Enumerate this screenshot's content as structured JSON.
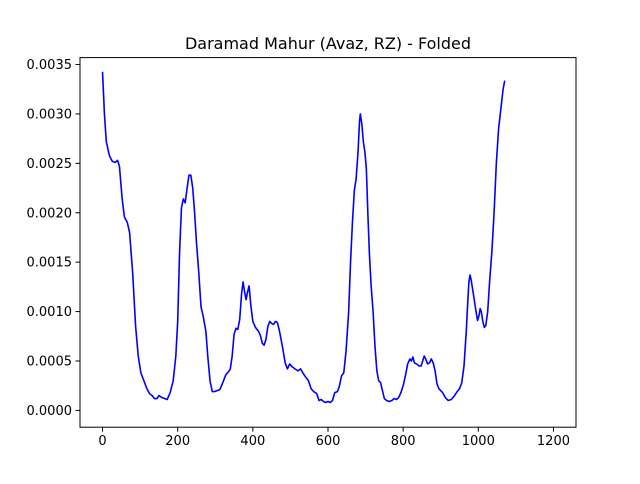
{
  "chart_data": {
    "type": "line",
    "title": "Daramad Mahur (Avaz, RZ) - Folded",
    "xlabel": "",
    "ylabel": "",
    "xlim": [
      -60,
      1260
    ],
    "ylim": [
      -0.00017,
      0.00357
    ],
    "grid": false,
    "legend": "none",
    "x_ticks": [
      {
        "value": 0,
        "label": "0"
      },
      {
        "value": 200,
        "label": "200"
      },
      {
        "value": 400,
        "label": "400"
      },
      {
        "value": 600,
        "label": "600"
      },
      {
        "value": 800,
        "label": "800"
      },
      {
        "value": 1000,
        "label": "1000"
      },
      {
        "value": 1200,
        "label": "1200"
      }
    ],
    "y_ticks": [
      {
        "value": 0.0,
        "label": "0.0000"
      },
      {
        "value": 0.0005,
        "label": "0.0005"
      },
      {
        "value": 0.001,
        "label": "0.0010"
      },
      {
        "value": 0.0015,
        "label": "0.0015"
      },
      {
        "value": 0.002,
        "label": "0.0020"
      },
      {
        "value": 0.0025,
        "label": "0.0025"
      },
      {
        "value": 0.003,
        "label": "0.0030"
      },
      {
        "value": 0.0035,
        "label": "0.0035"
      }
    ],
    "series": [
      {
        "color": "#0000ff",
        "points": [
          [
            0,
            0.00342
          ],
          [
            5,
            0.003
          ],
          [
            10,
            0.00272
          ],
          [
            18,
            0.00258
          ],
          [
            26,
            0.00252
          ],
          [
            34,
            0.00251
          ],
          [
            40,
            0.00253
          ],
          [
            45,
            0.00247
          ],
          [
            52,
            0.00215
          ],
          [
            58,
            0.00196
          ],
          [
            66,
            0.0019
          ],
          [
            72,
            0.0018
          ],
          [
            80,
            0.0014
          ],
          [
            88,
            0.00085
          ],
          [
            95,
            0.00055
          ],
          [
            102,
            0.00038
          ],
          [
            110,
            0.0003
          ],
          [
            118,
            0.00022
          ],
          [
            125,
            0.00017
          ],
          [
            132,
            0.00015
          ],
          [
            138,
            0.00012
          ],
          [
            145,
            0.00012
          ],
          [
            150,
            0.00015
          ],
          [
            158,
            0.00013
          ],
          [
            165,
            0.00012
          ],
          [
            172,
            0.00011
          ],
          [
            180,
            0.00018
          ],
          [
            188,
            0.0003
          ],
          [
            195,
            0.00055
          ],
          [
            200,
            0.0009
          ],
          [
            205,
            0.0016
          ],
          [
            210,
            0.00205
          ],
          [
            215,
            0.00214
          ],
          [
            220,
            0.0021
          ],
          [
            225,
            0.00225
          ],
          [
            230,
            0.00238
          ],
          [
            235,
            0.00238
          ],
          [
            240,
            0.00225
          ],
          [
            245,
            0.002
          ],
          [
            250,
            0.0017
          ],
          [
            256,
            0.0014
          ],
          [
            262,
            0.00105
          ],
          [
            268,
            0.00095
          ],
          [
            275,
            0.0008
          ],
          [
            280,
            0.00055
          ],
          [
            286,
            0.0003
          ],
          [
            292,
            0.00019
          ],
          [
            298,
            0.00019
          ],
          [
            305,
            0.0002
          ],
          [
            312,
            0.00021
          ],
          [
            320,
            0.00028
          ],
          [
            328,
            0.00036
          ],
          [
            335,
            0.00039
          ],
          [
            340,
            0.00042
          ],
          [
            345,
            0.00055
          ],
          [
            350,
            0.00077
          ],
          [
            355,
            0.00083
          ],
          [
            360,
            0.00082
          ],
          [
            365,
            0.00092
          ],
          [
            370,
            0.00118
          ],
          [
            374,
            0.0013
          ],
          [
            378,
            0.0012
          ],
          [
            382,
            0.00112
          ],
          [
            386,
            0.0012
          ],
          [
            390,
            0.00126
          ],
          [
            395,
            0.00105
          ],
          [
            400,
            0.0009
          ],
          [
            407,
            0.00084
          ],
          [
            415,
            0.0008
          ],
          [
            420,
            0.00076
          ],
          [
            425,
            0.00068
          ],
          [
            430,
            0.00066
          ],
          [
            435,
            0.00072
          ],
          [
            440,
            0.00085
          ],
          [
            445,
            0.0009
          ],
          [
            450,
            0.00088
          ],
          [
            455,
            0.00087
          ],
          [
            460,
            0.0009
          ],
          [
            465,
            0.00089
          ],
          [
            470,
            0.00082
          ],
          [
            475,
            0.00072
          ],
          [
            480,
            0.00062
          ],
          [
            486,
            0.00048
          ],
          [
            492,
            0.00042
          ],
          [
            498,
            0.00047
          ],
          [
            505,
            0.00044
          ],
          [
            512,
            0.00042
          ],
          [
            520,
            0.0004
          ],
          [
            527,
            0.00042
          ],
          [
            533,
            0.00038
          ],
          [
            540,
            0.00034
          ],
          [
            548,
            0.0003
          ],
          [
            555,
            0.00022
          ],
          [
            562,
            0.00019
          ],
          [
            570,
            0.00017
          ],
          [
            576,
            0.0001
          ],
          [
            582,
            0.00011
          ],
          [
            588,
            9e-05
          ],
          [
            594,
            8e-05
          ],
          [
            600,
            9e-05
          ],
          [
            606,
            8e-05
          ],
          [
            612,
            0.0001
          ],
          [
            618,
            0.00018
          ],
          [
            625,
            0.00019
          ],
          [
            630,
            0.00024
          ],
          [
            636,
            0.00035
          ],
          [
            642,
            0.00038
          ],
          [
            648,
            0.0006
          ],
          [
            655,
            0.001
          ],
          [
            660,
            0.0015
          ],
          [
            665,
            0.0019
          ],
          [
            670,
            0.00222
          ],
          [
            675,
            0.00235
          ],
          [
            680,
            0.00262
          ],
          [
            684,
            0.00293
          ],
          [
            686,
            0.003
          ],
          [
            690,
            0.0029
          ],
          [
            694,
            0.00272
          ],
          [
            698,
            0.00262
          ],
          [
            702,
            0.00245
          ],
          [
            706,
            0.002
          ],
          [
            710,
            0.0016
          ],
          [
            715,
            0.00125
          ],
          [
            720,
            0.001
          ],
          [
            725,
            0.00065
          ],
          [
            730,
            0.0004
          ],
          [
            735,
            0.0003
          ],
          [
            740,
            0.00028
          ],
          [
            745,
            0.0002
          ],
          [
            750,
            0.00012
          ],
          [
            756,
            0.0001
          ],
          [
            763,
            9e-05
          ],
          [
            770,
            0.0001
          ],
          [
            776,
            0.00012
          ],
          [
            782,
            0.00011
          ],
          [
            788,
            0.00013
          ],
          [
            794,
            0.00018
          ],
          [
            800,
            0.00025
          ],
          [
            806,
            0.00035
          ],
          [
            812,
            0.00047
          ],
          [
            818,
            0.00052
          ],
          [
            822,
            0.0005
          ],
          [
            826,
            0.00054
          ],
          [
            830,
            0.00048
          ],
          [
            836,
            0.00047
          ],
          [
            842,
            0.00045
          ],
          [
            848,
            0.00045
          ],
          [
            852,
            0.0005
          ],
          [
            856,
            0.00055
          ],
          [
            860,
            0.00052
          ],
          [
            865,
            0.00047
          ],
          [
            870,
            0.00048
          ],
          [
            875,
            0.00052
          ],
          [
            880,
            0.00048
          ],
          [
            885,
            0.0004
          ],
          [
            890,
            0.00027
          ],
          [
            895,
            0.00022
          ],
          [
            900,
            0.0002
          ],
          [
            905,
            0.00018
          ],
          [
            912,
            0.00013
          ],
          [
            920,
            0.0001
          ],
          [
            928,
            0.00011
          ],
          [
            935,
            0.00014
          ],
          [
            942,
            0.00018
          ],
          [
            950,
            0.00022
          ],
          [
            956,
            0.00028
          ],
          [
            962,
            0.00045
          ],
          [
            968,
            0.0008
          ],
          [
            972,
            0.0011
          ],
          [
            975,
            0.0013
          ],
          [
            978,
            0.00137
          ],
          [
            981,
            0.00132
          ],
          [
            986,
            0.0012
          ],
          [
            990,
            0.0011
          ],
          [
            994,
            0.001
          ],
          [
            998,
            0.00091
          ],
          [
            1002,
            0.00096
          ],
          [
            1005,
            0.00103
          ],
          [
            1008,
            0.001
          ],
          [
            1012,
            0.0009
          ],
          [
            1016,
            0.00084
          ],
          [
            1020,
            0.00086
          ],
          [
            1025,
            0.001
          ],
          [
            1030,
            0.0013
          ],
          [
            1036,
            0.0016
          ],
          [
            1042,
            0.002
          ],
          [
            1048,
            0.0025
          ],
          [
            1054,
            0.00285
          ],
          [
            1060,
            0.00305
          ],
          [
            1066,
            0.00325
          ],
          [
            1070,
            0.00333
          ]
        ]
      }
    ]
  }
}
